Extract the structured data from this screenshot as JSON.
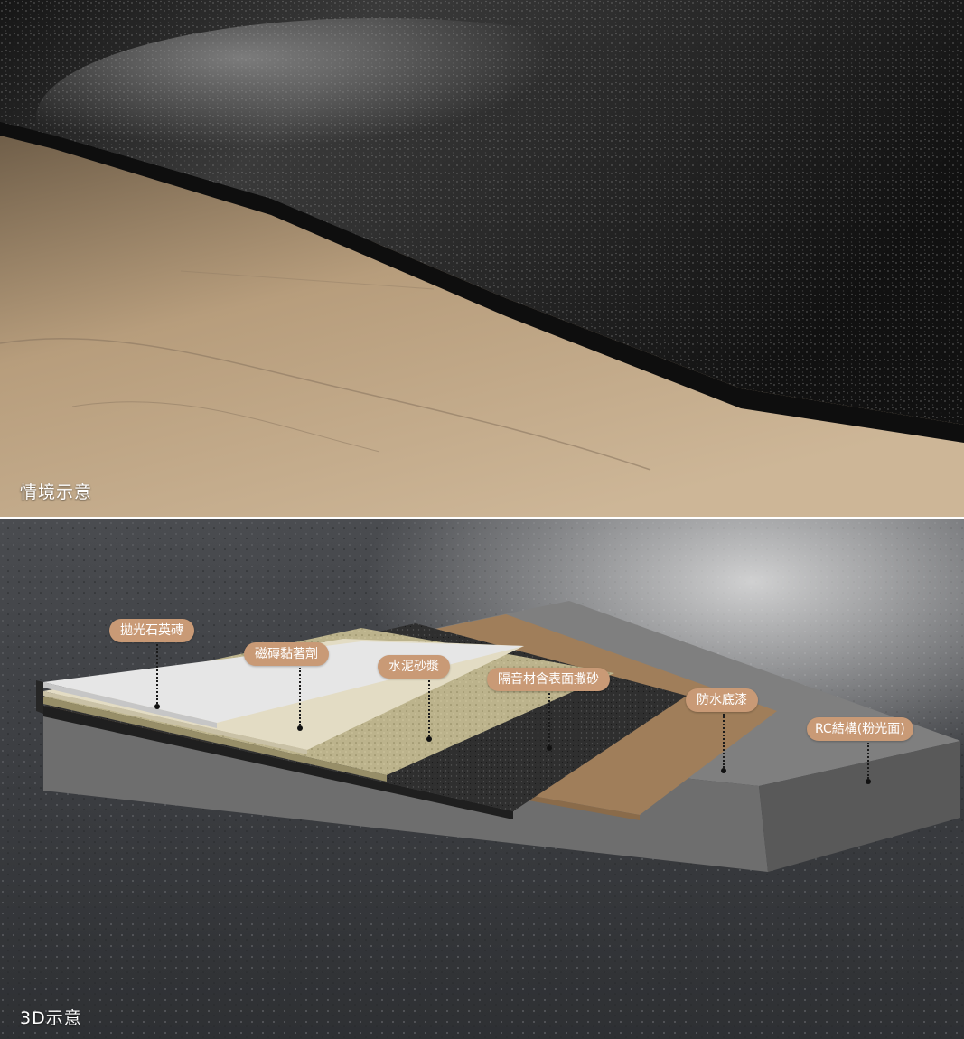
{
  "photo_caption": "情境示意",
  "render_caption": "3D示意",
  "layers": [
    {
      "label": "拋光石英磚"
    },
    {
      "label": "磁磚黏著劑"
    },
    {
      "label": "水泥砂漿"
    },
    {
      "label": "隔音材含表面撒砂"
    },
    {
      "label": "防水底漆"
    },
    {
      "label": "RC結構(粉光面)"
    }
  ],
  "colors": {
    "label_bg": "#c99a76",
    "tile": "#e6e6e6",
    "adhesive": "#e3dcc4",
    "mortar": "#bcb38c",
    "insulation": "#2f2f2f",
    "primer": "#a07e5a",
    "rc_slab": "#7f7f7f"
  }
}
